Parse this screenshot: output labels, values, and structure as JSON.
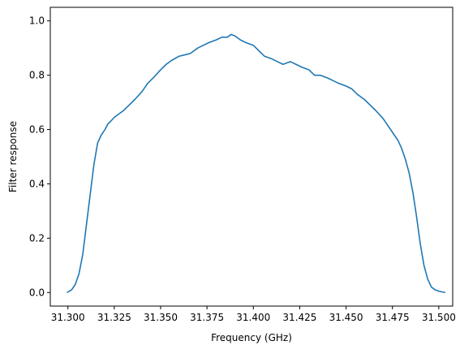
{
  "chart_data": {
    "type": "line",
    "title": "",
    "xlabel": "Frequency (GHz)",
    "ylabel": "Filter response",
    "xlim": [
      31.2905,
      31.5075
    ],
    "ylim": [
      -0.05,
      1.05
    ],
    "xticks": [
      31.3,
      31.325,
      31.35,
      31.375,
      31.4,
      31.425,
      31.45,
      31.475,
      31.5
    ],
    "xtick_labels": [
      "31.300",
      "31.325",
      "31.350",
      "31.375",
      "31.400",
      "31.425",
      "31.450",
      "31.475",
      "31.500"
    ],
    "yticks": [
      0.0,
      0.2,
      0.4,
      0.6,
      0.8,
      1.0
    ],
    "ytick_labels": [
      "0.0",
      "0.2",
      "0.4",
      "0.6",
      "0.8",
      "1.0"
    ],
    "grid": false,
    "legend": "none",
    "color": "#1f77b4",
    "series": [
      {
        "x": [
          31.2995,
          31.302,
          31.304,
          31.306,
          31.308,
          31.31,
          31.312,
          31.314,
          31.316,
          31.318,
          31.32,
          31.3215,
          31.323,
          31.325,
          31.328,
          31.33,
          31.333,
          31.336,
          31.34,
          31.343,
          31.346,
          31.35,
          31.353,
          31.356,
          31.36,
          31.363,
          31.366,
          31.37,
          31.373,
          31.376,
          31.38,
          31.383,
          31.386,
          31.388,
          31.39,
          31.393,
          31.396,
          31.4,
          31.403,
          31.406,
          31.41,
          31.413,
          31.416,
          31.42,
          31.423,
          31.426,
          31.43,
          31.433,
          31.436,
          31.44,
          31.443,
          31.446,
          31.45,
          31.453,
          31.456,
          31.46,
          31.463,
          31.466,
          31.47,
          31.473,
          31.476,
          31.478,
          31.48,
          31.482,
          31.484,
          31.486,
          31.488,
          31.49,
          31.492,
          31.494,
          31.496,
          31.498,
          31.5,
          31.502,
          31.5035
        ],
        "y": [
          0.0,
          0.01,
          0.03,
          0.07,
          0.14,
          0.25,
          0.36,
          0.47,
          0.55,
          0.58,
          0.6,
          0.62,
          0.63,
          0.645,
          0.66,
          0.67,
          0.69,
          0.71,
          0.74,
          0.77,
          0.79,
          0.82,
          0.84,
          0.855,
          0.87,
          0.875,
          0.88,
          0.9,
          0.91,
          0.92,
          0.93,
          0.94,
          0.94,
          0.95,
          0.945,
          0.93,
          0.92,
          0.91,
          0.89,
          0.87,
          0.86,
          0.85,
          0.84,
          0.85,
          0.84,
          0.83,
          0.82,
          0.8,
          0.8,
          0.79,
          0.78,
          0.77,
          0.76,
          0.75,
          0.73,
          0.71,
          0.69,
          0.67,
          0.64,
          0.61,
          0.58,
          0.56,
          0.53,
          0.49,
          0.44,
          0.37,
          0.28,
          0.18,
          0.1,
          0.05,
          0.02,
          0.01,
          0.005,
          0.002,
          0.0
        ]
      }
    ]
  }
}
